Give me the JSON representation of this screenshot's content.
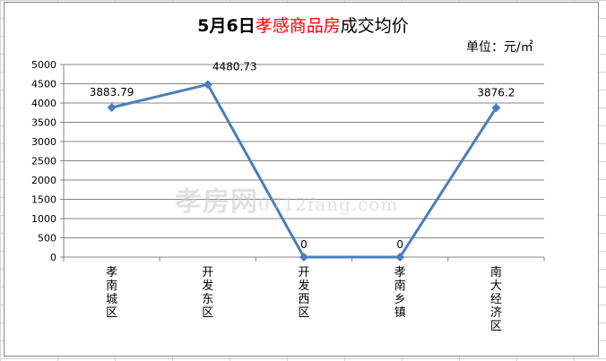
{
  "chart_data": {
    "type": "line",
    "title_prefix": "5月6日",
    "title_red": "孝感商品房",
    "title_suffix": "成交均价",
    "unit": "单位：元/㎡",
    "categories": [
      "孝南城区",
      "开发东区",
      "开发西区",
      "孝南乡镇",
      "南大经济区"
    ],
    "values": [
      3883.79,
      4480.73,
      0,
      0,
      3876.2
    ],
    "data_labels": [
      "3883.79",
      "4480.73",
      "0",
      "0",
      "3876.2"
    ],
    "ylim": [
      0,
      5000
    ],
    "yticks": [
      0,
      500,
      1000,
      1500,
      2000,
      2500,
      3000,
      3500,
      4000,
      4500,
      5000
    ],
    "grid": true,
    "legend": "none",
    "line_color": "#4a7ebb"
  },
  "watermark": {
    "brand": "孝房网",
    "site": "0712fang.com"
  }
}
